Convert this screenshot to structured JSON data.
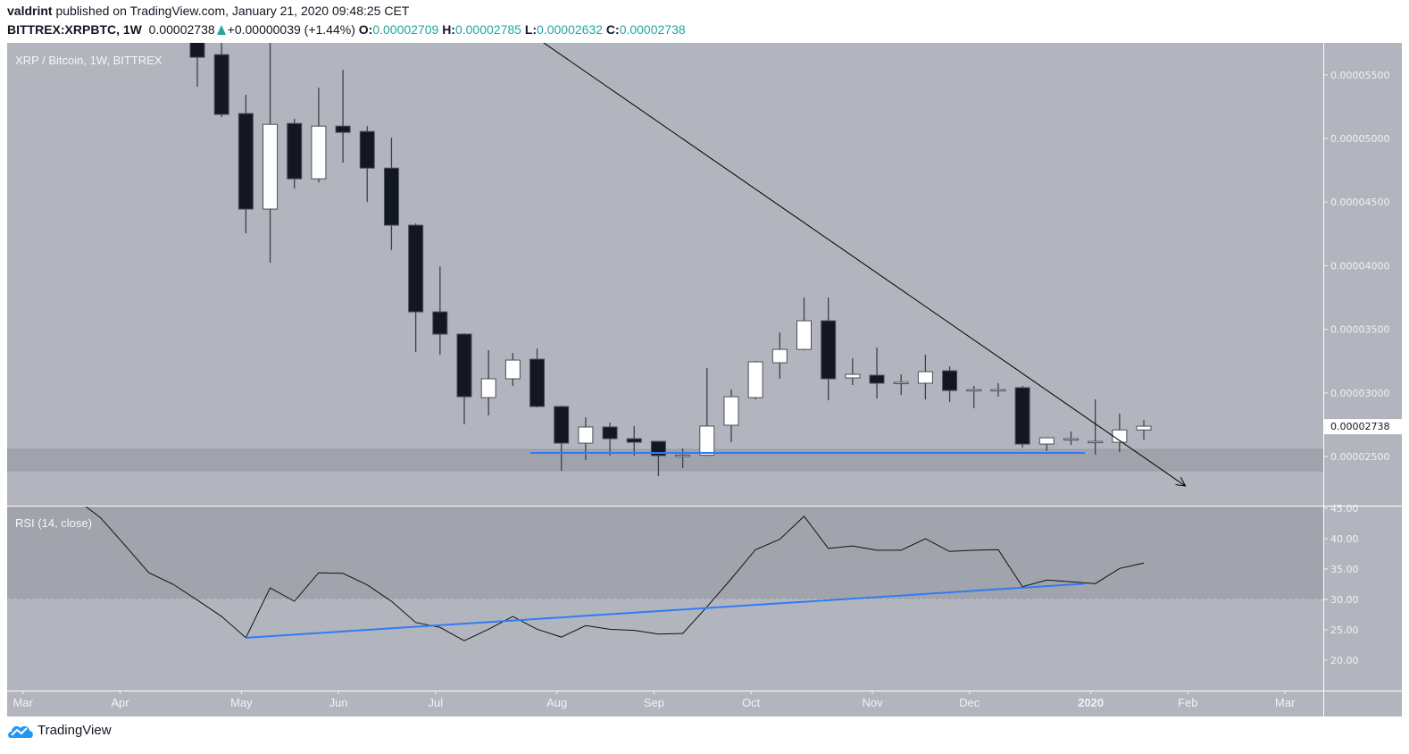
{
  "header": {
    "author": "valdrint",
    "published_text": " published on TradingView.com, January 21, 2020 09:48:25 CET",
    "symbol": "BITTREX:XRPBTC, 1W",
    "last_price": "0.00002738",
    "change": "+0.00000039 (+1.44%)",
    "open_label": "O:",
    "open": "0.00002709",
    "high_label": "H:",
    "high": "0.00002785",
    "low_label": "L:",
    "low": "0.00002632",
    "close_label": "C:",
    "close": "0.00002738"
  },
  "colors": {
    "pane_bg": "#b2b5be",
    "zone": "#a0a3ab",
    "bear": "#131722",
    "bull": "#ffffff",
    "trend_blue": "#2f7cf6",
    "accent_teal": "#26a69a"
  },
  "footer": {
    "brand": "TradingView",
    "logo_icon": "tradingview-cloud-icon"
  },
  "chart_data": [
    {
      "type": "candlestick",
      "title": "XRP / Bitcoin, 1W, BITTREX",
      "last_price_label": "0.00002738",
      "yticks": [
        "0.00005500",
        "0.00005000",
        "0.00004500",
        "0.00004000",
        "0.00003500",
        "0.00003000",
        "0.00002500"
      ],
      "ylim": [
        2.19e-05,
        5.82e-05
      ],
      "grid": false,
      "columns": [
        "date",
        "open",
        "high",
        "low",
        "close"
      ],
      "candles": [
        [
          "2019-04-22",
          5.86e-05,
          5.95e-05,
          5.406e-05,
          5.638e-05
        ],
        [
          "2019-04-29",
          5.659e-05,
          5.806e-05,
          5.168e-05,
          5.189e-05
        ],
        [
          "2019-05-06",
          5.196e-05,
          5.343e-05,
          4.255e-05,
          4.445e-05
        ],
        [
          "2019-05-13",
          4.445e-05,
          5.9e-05,
          4.023e-05,
          5.111e-05
        ],
        [
          "2019-05-20",
          5.118e-05,
          5.154e-05,
          4.606e-05,
          4.683e-05
        ],
        [
          "2019-05-27",
          4.683e-05,
          5.399e-05,
          4.655e-05,
          5.097e-05
        ],
        [
          "2019-06-03",
          5.097e-05,
          5.54e-05,
          4.81e-05,
          5.048e-05
        ],
        [
          "2019-06-10",
          5.055e-05,
          5.097e-05,
          4.501e-05,
          4.767e-05
        ],
        [
          "2019-06-17",
          4.767e-05,
          5.006e-05,
          4.122e-05,
          4.318e-05
        ],
        [
          "2019-06-24",
          4.318e-05,
          4.332e-05,
          3.321e-05,
          3.637e-05
        ],
        [
          "2019-07-01",
          3.637e-05,
          3.995e-05,
          3.3e-05,
          3.462e-05
        ],
        [
          "2019-07-08",
          3.462e-05,
          3.469e-05,
          2.753e-05,
          2.97e-05
        ],
        [
          "2019-07-15",
          2.963e-05,
          3.335e-05,
          2.823e-05,
          3.111e-05
        ],
        [
          "2019-07-22",
          3.111e-05,
          3.314e-05,
          3.055e-05,
          3.258e-05
        ],
        [
          "2019-07-29",
          3.265e-05,
          3.349e-05,
          2.886e-05,
          2.893e-05
        ],
        [
          "2019-08-05",
          2.893e-05,
          2.9e-05,
          2.388e-05,
          2.605e-05
        ],
        [
          "2019-08-12",
          2.605e-05,
          2.809e-05,
          2.472e-05,
          2.732e-05
        ],
        [
          "2019-08-19",
          2.732e-05,
          2.767e-05,
          2.507e-05,
          2.64e-05
        ],
        [
          "2019-08-26",
          2.64e-05,
          2.739e-05,
          2.507e-05,
          2.612e-05
        ],
        [
          "2019-09-02",
          2.619e-05,
          2.62e-05,
          2.346e-05,
          2.507e-05
        ],
        [
          "2019-09-09",
          2.507e-05,
          2.563e-05,
          2.409e-05,
          2.51e-05
        ],
        [
          "2019-09-16",
          2.51e-05,
          3.195e-05,
          2.505e-05,
          2.739e-05
        ],
        [
          "2019-09-23",
          2.746e-05,
          3.027e-05,
          2.612e-05,
          2.97e-05
        ],
        [
          "2019-09-30",
          2.963e-05,
          3.25e-05,
          2.949e-05,
          3.244e-05
        ],
        [
          "2019-10-07",
          3.237e-05,
          3.476e-05,
          3.111e-05,
          3.342e-05
        ],
        [
          "2019-10-14",
          3.342e-05,
          3.75e-05,
          3.335e-05,
          3.567e-05
        ],
        [
          "2019-10-21",
          3.567e-05,
          3.75e-05,
          2.942e-05,
          3.111e-05
        ],
        [
          "2019-10-28",
          3.118e-05,
          3.272e-05,
          3.062e-05,
          3.146e-05
        ],
        [
          "2019-11-04",
          3.139e-05,
          3.356e-05,
          2.956e-05,
          3.076e-05
        ],
        [
          "2019-11-11",
          3.076e-05,
          3.146e-05,
          2.984e-05,
          3.083e-05
        ],
        [
          "2019-11-18",
          3.076e-05,
          3.3e-05,
          2.949e-05,
          3.167e-05
        ],
        [
          "2019-11-25",
          3.174e-05,
          3.209e-05,
          2.928e-05,
          3.019e-05
        ],
        [
          "2019-12-02",
          3.019e-05,
          3.055e-05,
          2.879e-05,
          3.026e-05
        ],
        [
          "2019-12-09",
          3.026e-05,
          3.076e-05,
          2.97e-05,
          3.026e-05
        ],
        [
          "2019-12-16",
          3.041e-05,
          3.055e-05,
          2.57e-05,
          2.598e-05
        ],
        [
          "2019-12-23",
          2.598e-05,
          2.647e-05,
          2.542e-05,
          2.647e-05
        ],
        [
          "2019-12-30",
          2.64e-05,
          2.697e-05,
          2.591e-05,
          2.64e-05
        ],
        [
          "2020-01-06",
          2.619e-05,
          2.949e-05,
          2.514e-05,
          2.619e-05
        ],
        [
          "2020-01-13",
          2.612e-05,
          2.837e-05,
          2.535e-05,
          2.709e-05
        ],
        [
          "2020-01-20",
          2.709e-05,
          2.785e-05,
          2.632e-05,
          2.738e-05
        ]
      ],
      "support_zone": [
        2.388e-05,
        2.556e-05
      ],
      "drawings": [
        {
          "kind": "arrow",
          "color": "#000000",
          "from": [
            "2019-07-31",
            5.75e-05
          ],
          "to": [
            "2020-02-01",
            2.268e-05
          ]
        },
        {
          "kind": "line",
          "color": "#2f7cf6",
          "from": [
            "2019-07-27",
            2.528e-05
          ],
          "to": [
            "2020-01-03",
            2.528e-05
          ]
        }
      ]
    },
    {
      "type": "line",
      "title": "RSI (14, close)",
      "yticks": [
        "45.00",
        "40.00",
        "35.00",
        "30.00",
        "25.00",
        "20.00"
      ],
      "ylim": [
        15,
        45.3
      ],
      "band": [
        30,
        70
      ],
      "series": [
        {
          "points": [
            [
              "2019-03-18",
              46.5
            ],
            [
              "2019-03-25",
              43.5
            ],
            [
              "2019-04-01",
              39.0
            ],
            [
              "2019-04-08",
              34.4
            ],
            [
              "2019-04-15",
              32.5
            ],
            [
              "2019-04-22",
              29.9
            ],
            [
              "2019-04-29",
              27.2
            ],
            [
              "2019-05-06",
              23.7
            ],
            [
              "2019-05-13",
              31.9
            ],
            [
              "2019-05-20",
              29.7
            ],
            [
              "2019-05-27",
              34.4
            ],
            [
              "2019-06-03",
              34.3
            ],
            [
              "2019-06-10",
              32.4
            ],
            [
              "2019-06-17",
              29.7
            ],
            [
              "2019-06-24",
              26.2
            ],
            [
              "2019-07-01",
              25.4
            ],
            [
              "2019-07-08",
              23.2
            ],
            [
              "2019-07-15",
              25.1
            ],
            [
              "2019-07-22",
              27.2
            ],
            [
              "2019-07-29",
              25.1
            ],
            [
              "2019-08-05",
              23.8
            ],
            [
              "2019-08-12",
              25.7
            ],
            [
              "2019-08-19",
              25.1
            ],
            [
              "2019-08-26",
              24.9
            ],
            [
              "2019-09-02",
              24.3
            ],
            [
              "2019-09-09",
              24.4
            ],
            [
              "2019-09-16",
              28.8
            ],
            [
              "2019-09-23",
              33.4
            ],
            [
              "2019-09-30",
              38.2
            ],
            [
              "2019-10-07",
              39.9
            ],
            [
              "2019-10-14",
              43.7
            ],
            [
              "2019-10-21",
              38.4
            ],
            [
              "2019-10-28",
              38.8
            ],
            [
              "2019-11-04",
              38.1
            ],
            [
              "2019-11-11",
              38.1
            ],
            [
              "2019-11-18",
              40.0
            ],
            [
              "2019-11-25",
              37.9
            ],
            [
              "2019-12-02",
              38.1
            ],
            [
              "2019-12-09",
              38.2
            ],
            [
              "2019-12-16",
              32.1
            ],
            [
              "2019-12-23",
              33.2
            ],
            [
              "2019-12-30",
              32.9
            ],
            [
              "2020-01-06",
              32.6
            ],
            [
              "2020-01-13",
              35.1
            ],
            [
              "2020-01-20",
              36.0
            ]
          ]
        }
      ],
      "drawings": [
        {
          "kind": "line",
          "color": "#2f7cf6",
          "from": [
            "2019-05-06",
            23.7
          ],
          "to": [
            "2020-01-03",
            32.6
          ]
        }
      ]
    }
  ],
  "time_axis": [
    {
      "label": "Mar",
      "date": "2019-03-04"
    },
    {
      "label": "Apr",
      "date": "2019-04-01"
    },
    {
      "label": "May",
      "date": "2019-05-06"
    },
    {
      "label": "Jun",
      "date": "2019-06-03"
    },
    {
      "label": "Jul",
      "date": "2019-07-01"
    },
    {
      "label": "Aug",
      "date": "2019-08-05"
    },
    {
      "label": "Sep",
      "date": "2019-09-02"
    },
    {
      "label": "Oct",
      "date": "2019-09-30"
    },
    {
      "label": "Nov",
      "date": "2019-11-04"
    },
    {
      "label": "Dec",
      "date": "2019-12-02"
    },
    {
      "label": "2020",
      "date": "2020-01-06"
    },
    {
      "label": "Feb",
      "date": "2020-02-03"
    },
    {
      "label": "Mar",
      "date": "2020-03-02"
    }
  ]
}
